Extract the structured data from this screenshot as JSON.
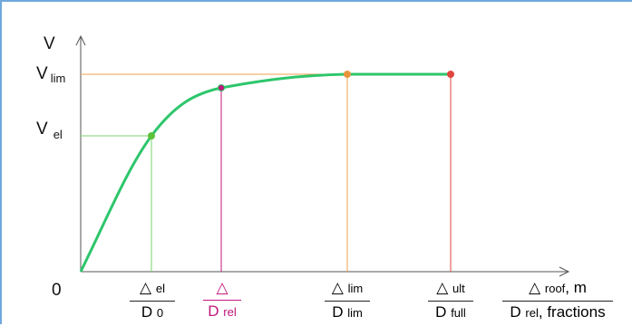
{
  "axes": {
    "y_label": "V",
    "origin_label": "0",
    "y_ticks": {
      "v_lim": {
        "main": "V",
        "sub": "lim"
      },
      "v_el": {
        "main": "V",
        "sub": "el"
      }
    }
  },
  "x_labels": {
    "el": {
      "num": "△",
      "num_sub": "el",
      "den": "D",
      "den_sub": "0"
    },
    "rel": {
      "num": "△",
      "den": "D",
      "den_sub": "rel"
    },
    "lim": {
      "num": "△",
      "num_sub": "lim",
      "den": "D",
      "den_sub": "lim"
    },
    "ult": {
      "num": "△",
      "num_sub": "ult",
      "den": "D",
      "den_sub": "full"
    },
    "axis": {
      "num": "△",
      "num_sub": "roof",
      "num_suffix": ", m",
      "den": "D",
      "den_sub": "rel",
      "den_suffix": ", fractions"
    }
  },
  "colors": {
    "curve": "#2dc66b",
    "el": "#7bd36b",
    "rel": "#c0167a",
    "lim": "#f0a04b",
    "ult": "#e0463e",
    "axis": "#555555",
    "frame": "#6fa8dc"
  }
}
